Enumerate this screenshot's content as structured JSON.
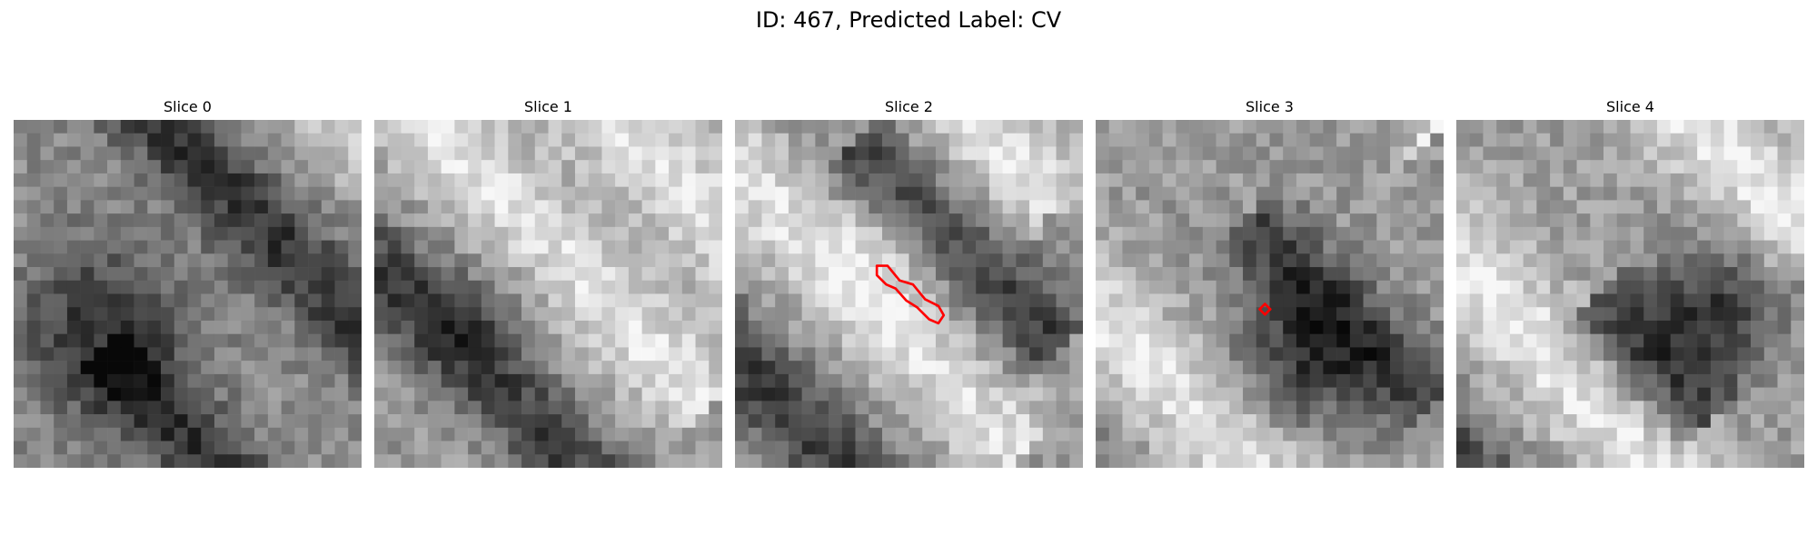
{
  "figure": {
    "title": "ID: 467, Predicted Label: CV"
  },
  "panels": [
    {
      "title": "Slice 0"
    },
    {
      "title": "Slice 1"
    },
    {
      "title": "Slice 2"
    },
    {
      "title": "Slice 3"
    },
    {
      "title": "Slice 4"
    }
  ],
  "colors": {
    "contour": "#ff0000",
    "background": "#ffffff"
  },
  "colormap": "gray",
  "grid_cells": 26
}
